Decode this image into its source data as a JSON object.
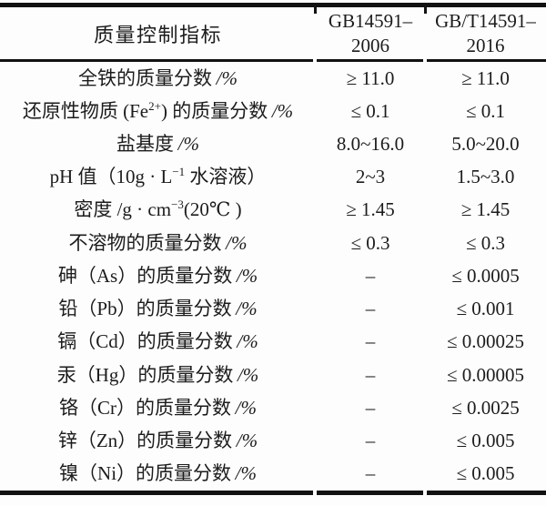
{
  "colors": {
    "ink": "#1c1c1c",
    "paper": "#fdfdfd",
    "rule": "#121212"
  },
  "table": {
    "header": {
      "col1": "质量控制指标",
      "col2_lines": [
        "GB14591–",
        "2006"
      ],
      "col3_lines": [
        "GB/T14591–",
        "2016"
      ]
    },
    "rows": [
      {
        "pre": "全铁的质量分数",
        "sup": "",
        "post": "",
        "unit": "/%",
        "v2006": "≥ 11.0",
        "v2016": "≥ 11.0"
      },
      {
        "pre": "还原性物质 (Fe",
        "sup": "2+",
        "post": ") 的质量分数",
        "unit": "/%",
        "v2006": "≤ 0.1",
        "v2016": "≤ 0.1"
      },
      {
        "pre": "盐基度",
        "sup": "",
        "post": "",
        "unit": "/%",
        "v2006": "8.0~16.0",
        "v2016": "5.0~20.0"
      },
      {
        "pre": "pH 值（10g · L",
        "sup": "−1",
        "post": " 水溶液）",
        "unit": "",
        "v2006": "2~3",
        "v2016": "1.5~3.0"
      },
      {
        "pre": "密度 /g · cm",
        "sup": "−3",
        "post": "(20℃ )",
        "unit": "",
        "v2006": "≥ 1.45",
        "v2016": "≥ 1.45"
      },
      {
        "pre": "不溶物的质量分数",
        "sup": "",
        "post": "",
        "unit": "/%",
        "v2006": "≤ 0.3",
        "v2016": "≤ 0.3"
      },
      {
        "pre": "砷（As）的质量分数",
        "sup": "",
        "post": "",
        "unit": "/%",
        "v2006": "–",
        "v2016": "≤ 0.0005"
      },
      {
        "pre": "铅（Pb）的质量分数",
        "sup": "",
        "post": "",
        "unit": "/%",
        "v2006": "–",
        "v2016": "≤ 0.001"
      },
      {
        "pre": "镉（Cd）的质量分数",
        "sup": "",
        "post": "",
        "unit": "/%",
        "v2006": "–",
        "v2016": "≤ 0.00025"
      },
      {
        "pre": "汞（Hg）的质量分数",
        "sup": "",
        "post": "",
        "unit": "/%",
        "v2006": "–",
        "v2016": "≤ 0.00005"
      },
      {
        "pre": "铬（Cr）的质量分数",
        "sup": "",
        "post": "",
        "unit": "/%",
        "v2006": "–",
        "v2016": "≤ 0.0025"
      },
      {
        "pre": "锌（Zn）的质量分数",
        "sup": "",
        "post": "",
        "unit": "/%",
        "v2006": "–",
        "v2016": "≤ 0.005"
      },
      {
        "pre": "镍（Ni）的质量分数",
        "sup": "",
        "post": "",
        "unit": "/%",
        "v2006": "–",
        "v2016": "≤ 0.005"
      }
    ]
  }
}
